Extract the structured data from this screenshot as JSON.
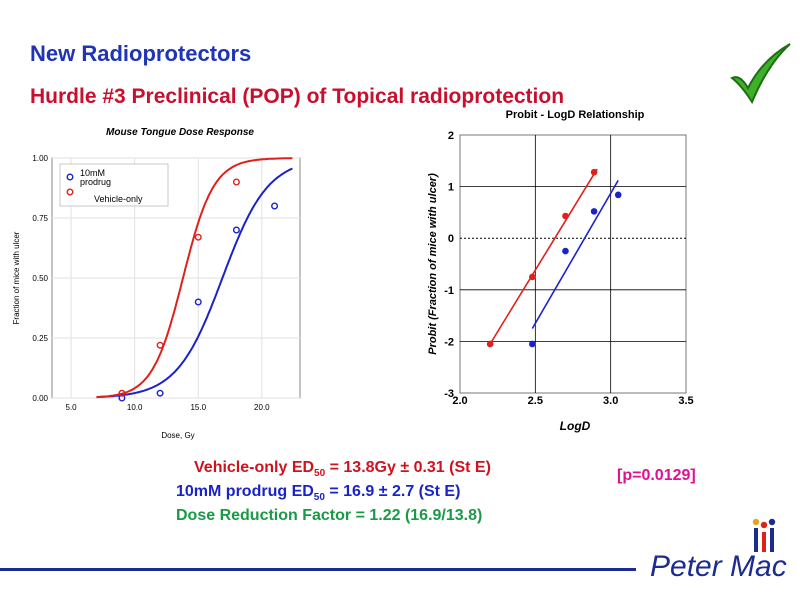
{
  "header": {
    "title": "New Radioprotectors",
    "subtitle": "Hurdle #3  Preclinical (POP) of Topical radioprotection"
  },
  "results": {
    "vehicle_prefix": "Vehicle-only ED",
    "vehicle_sub": "50",
    "vehicle_value": " = 13.8Gy ± 0.31 (St E)",
    "prodrug_prefix": "10mM prodrug ED",
    "prodrug_sub": "50",
    "prodrug_value": " = 16.9 ± 2.7 (St E)",
    "dose_reduction": "Dose Reduction Factor = 1.22 (16.9/13.8)",
    "p_value": "[p=0.0129]"
  },
  "logo": {
    "text": "Peter Mac"
  },
  "chart_data": [
    {
      "type": "scatter",
      "title": "Mouse Tongue Dose Response",
      "xlabel": "Dose, Gy",
      "ylabel": "Fraction of mice with ulcer",
      "xlim": [
        3.5,
        23
      ],
      "ylim": [
        0,
        1
      ],
      "xticks": [
        5,
        10,
        15,
        20
      ],
      "xtick_labels": [
        "5.0",
        "10.0",
        "15.0",
        "20.0"
      ],
      "yticks": [
        0,
        0.25,
        0.5,
        0.75,
        1
      ],
      "ytick_labels": [
        "0.00",
        "0.25",
        "0.50",
        "0.75",
        "1.00"
      ],
      "legend_position": "top-left",
      "series": [
        {
          "name": "10mM prodrug",
          "legend_lines": [
            "10mM",
            "prodrug"
          ],
          "color": "#1a23c8",
          "x": [
            9,
            12,
            15,
            18,
            21
          ],
          "y": [
            0,
            0.02,
            0.4,
            0.7,
            0.8
          ],
          "fit": {
            "ed50": 16.9,
            "slope": 0.35
          }
        },
        {
          "name": "Vehicle-only",
          "legend_lines": [
            "Vehicle-only"
          ],
          "color": "#e0201a",
          "x": [
            9,
            12,
            15,
            18
          ],
          "y": [
            0.02,
            0.22,
            0.67,
            0.9
          ],
          "fit": {
            "ed50": 13.8,
            "slope": 0.52
          }
        }
      ]
    },
    {
      "type": "scatter",
      "title": "Probit - LogD Relationship",
      "xlabel": "LogD",
      "ylabel": "Probit (Fraction of mice with ulcer)",
      "xlim": [
        2.0,
        3.5
      ],
      "ylim": [
        -3,
        2
      ],
      "xticks": [
        2.0,
        2.5,
        3.0,
        3.5
      ],
      "xtick_labels": [
        "2.0",
        "2.5",
        "3.0",
        "3.5"
      ],
      "yticks": [
        -3,
        -2,
        -1,
        0,
        1,
        2
      ],
      "ytick_labels": [
        "-3",
        "-2",
        "-1",
        "0",
        "1",
        "2"
      ],
      "series": [
        {
          "name": "Vehicle-only",
          "color": "#e0201a",
          "x": [
            2.2,
            2.48,
            2.7,
            2.89
          ],
          "y": [
            -2.05,
            -0.75,
            0.43,
            1.28
          ],
          "fit_line": {
            "x": [
              2.2,
              2.91
            ],
            "y": [
              -2.05,
              1.34
            ]
          }
        },
        {
          "name": "10mM prodrug",
          "color": "#1a23c8",
          "x": [
            2.48,
            2.7,
            2.89,
            3.05
          ],
          "y": [
            -2.05,
            -0.25,
            0.52,
            0.84
          ],
          "fit_line": {
            "x": [
              2.48,
              3.05
            ],
            "y": [
              -1.75,
              1.12
            ]
          }
        }
      ]
    }
  ]
}
